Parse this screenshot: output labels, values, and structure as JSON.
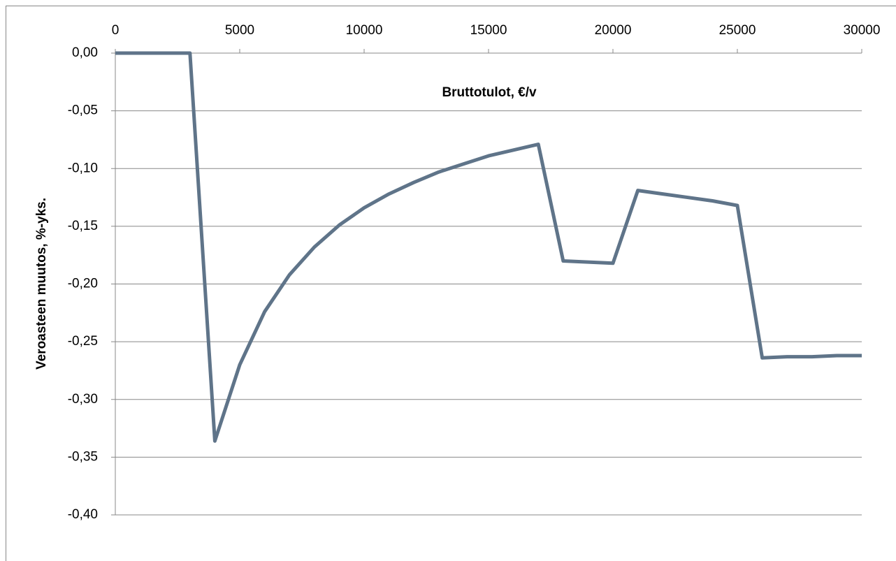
{
  "chart_data": {
    "type": "line",
    "y_label": "Veroasteen muutos, %-yks.",
    "x_label": "Bruttotulot, €/v",
    "x": [
      0,
      1000,
      2000,
      3000,
      4000,
      5000,
      6000,
      7000,
      8000,
      9000,
      10000,
      11000,
      12000,
      13000,
      14000,
      15000,
      16000,
      17000,
      18000,
      19000,
      20000,
      21000,
      22000,
      23000,
      24000,
      25000,
      26000,
      27000,
      28000,
      29000,
      30000
    ],
    "series": [
      {
        "color": "#5f7489",
        "values": [
          0,
          0,
          0,
          0,
          -0.336,
          -0.27,
          -0.224,
          -0.192,
          -0.168,
          -0.149,
          -0.134,
          -0.122,
          -0.112,
          -0.103,
          -0.096,
          -0.089,
          -0.084,
          -0.079,
          -0.18,
          -0.181,
          -0.182,
          -0.119,
          -0.122,
          -0.125,
          -0.128,
          -0.132,
          -0.264,
          -0.263,
          -0.263,
          -0.262,
          -0.262
        ]
      }
    ],
    "xlim": [
      0,
      30000
    ],
    "xticks": [
      0,
      5000,
      10000,
      15000,
      20000,
      25000,
      30000
    ],
    "ylim": [
      -0.4,
      0
    ],
    "yticks": [
      {
        "value": 0,
        "label": "0,00"
      },
      {
        "value": -0.05,
        "label": "-0,05"
      },
      {
        "value": -0.1,
        "label": "-0,10"
      },
      {
        "value": -0.15,
        "label": "-0,15"
      },
      {
        "value": -0.2,
        "label": "-0,20"
      },
      {
        "value": -0.25,
        "label": "-0,25"
      },
      {
        "value": -0.3,
        "label": "-0,30"
      },
      {
        "value": -0.35,
        "label": "-0,35"
      },
      {
        "value": -0.4,
        "label": "-0,40"
      }
    ],
    "grid": true
  }
}
